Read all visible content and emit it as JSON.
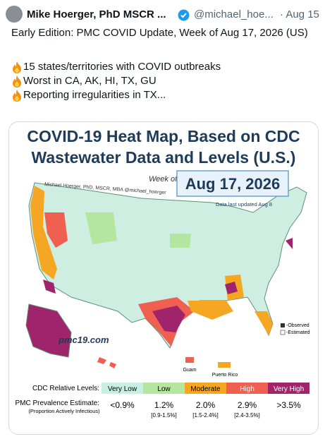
{
  "tweet": {
    "author": "Mike Hoerger, PhD MSCR ...",
    "handle": "@michael_hoe...",
    "date": "· Aug 15",
    "lines": [
      "Early Edition: PMC COVID Update, Week of Aug 17, 2026 (US)",
      "15 states/territories with COVID outbreaks",
      "Worst in CA, AK, HI, TX, GU",
      "Reporting irregularities in TX..."
    ]
  },
  "image": {
    "title_lines": [
      "COVID-19 Heat Map, Based on CDC",
      "Wastewater Data and Levels (U.S.)"
    ],
    "credit": "Michael Hoerger, PhD, MSCR, MBA  @michael_hoerger",
    "week_of": "Week of",
    "week_date": "Aug 17, 2026",
    "updated": "Data last updated Aug 8",
    "site": "pmc19.com",
    "territories": [
      "Guam",
      "Puerto Rico"
    ],
    "key": [
      "-Observed",
      "-Estimated"
    ],
    "legend": {
      "levels_label": "CDC Relative Levels:",
      "levels": [
        "Very Low",
        "Low",
        "Moderate",
        "High",
        "Very High"
      ],
      "estimate_label": "PMC Prevalence Estimate:",
      "estimate_sublabel": "(Proportion Actively Infectious)",
      "estimates": [
        {
          "value": "<0.9%"
        },
        {
          "value": "1.2%",
          "range": "[0.9-1.5%]"
        },
        {
          "value": "2.0%",
          "range": "[1.5-2.4%]"
        },
        {
          "value": "2.9%",
          "range": "[2.4-3.5%]"
        },
        {
          "value": ">3.5%"
        }
      ]
    }
  }
}
